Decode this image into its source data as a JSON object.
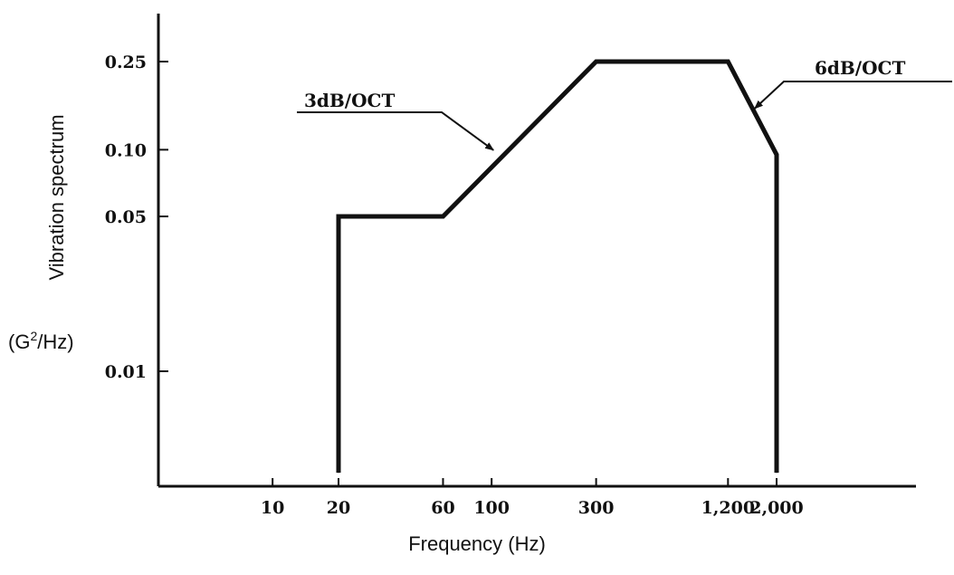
{
  "chart_data": {
    "type": "line",
    "title": "",
    "xlabel": "Frequency (Hz)",
    "ylabel": "Vibration spectrum",
    "yunit": {
      "prefix": "(G",
      "superscript": "2",
      "suffix": "/Hz)"
    },
    "x_scale": "log",
    "y_scale": "log",
    "x_ticks": [
      {
        "value": 10,
        "label": "10"
      },
      {
        "value": 20,
        "label": "20"
      },
      {
        "value": 60,
        "label": "60"
      },
      {
        "value": 100,
        "label": "100"
      },
      {
        "value": 300,
        "label": "300"
      },
      {
        "value": 1200,
        "label": "1,200"
      },
      {
        "value": 2000,
        "label": "2,000"
      }
    ],
    "y_ticks": [
      {
        "value": 0.01,
        "label": "0.01"
      },
      {
        "value": 0.05,
        "label": "0.05"
      },
      {
        "value": 0.1,
        "label": "0.10"
      },
      {
        "value": 0.25,
        "label": "0.25"
      }
    ],
    "grid": false,
    "series": [
      {
        "points": [
          {
            "x": 20,
            "y": 0.002
          },
          {
            "x": 20,
            "y": 0.05
          },
          {
            "x": 60,
            "y": 0.05
          },
          {
            "x": 300,
            "y": 0.25
          },
          {
            "x": 1200,
            "y": 0.25
          },
          {
            "x": 2000,
            "y": 0.095
          },
          {
            "x": 2000,
            "y": 0.002
          }
        ]
      }
    ],
    "annotations": [
      {
        "text": "3dB/OCT",
        "target": {
          "x": 110,
          "y": 0.095
        }
      },
      {
        "text": "6dB/OCT",
        "target": {
          "x": 1500,
          "y": 0.145
        }
      }
    ]
  }
}
